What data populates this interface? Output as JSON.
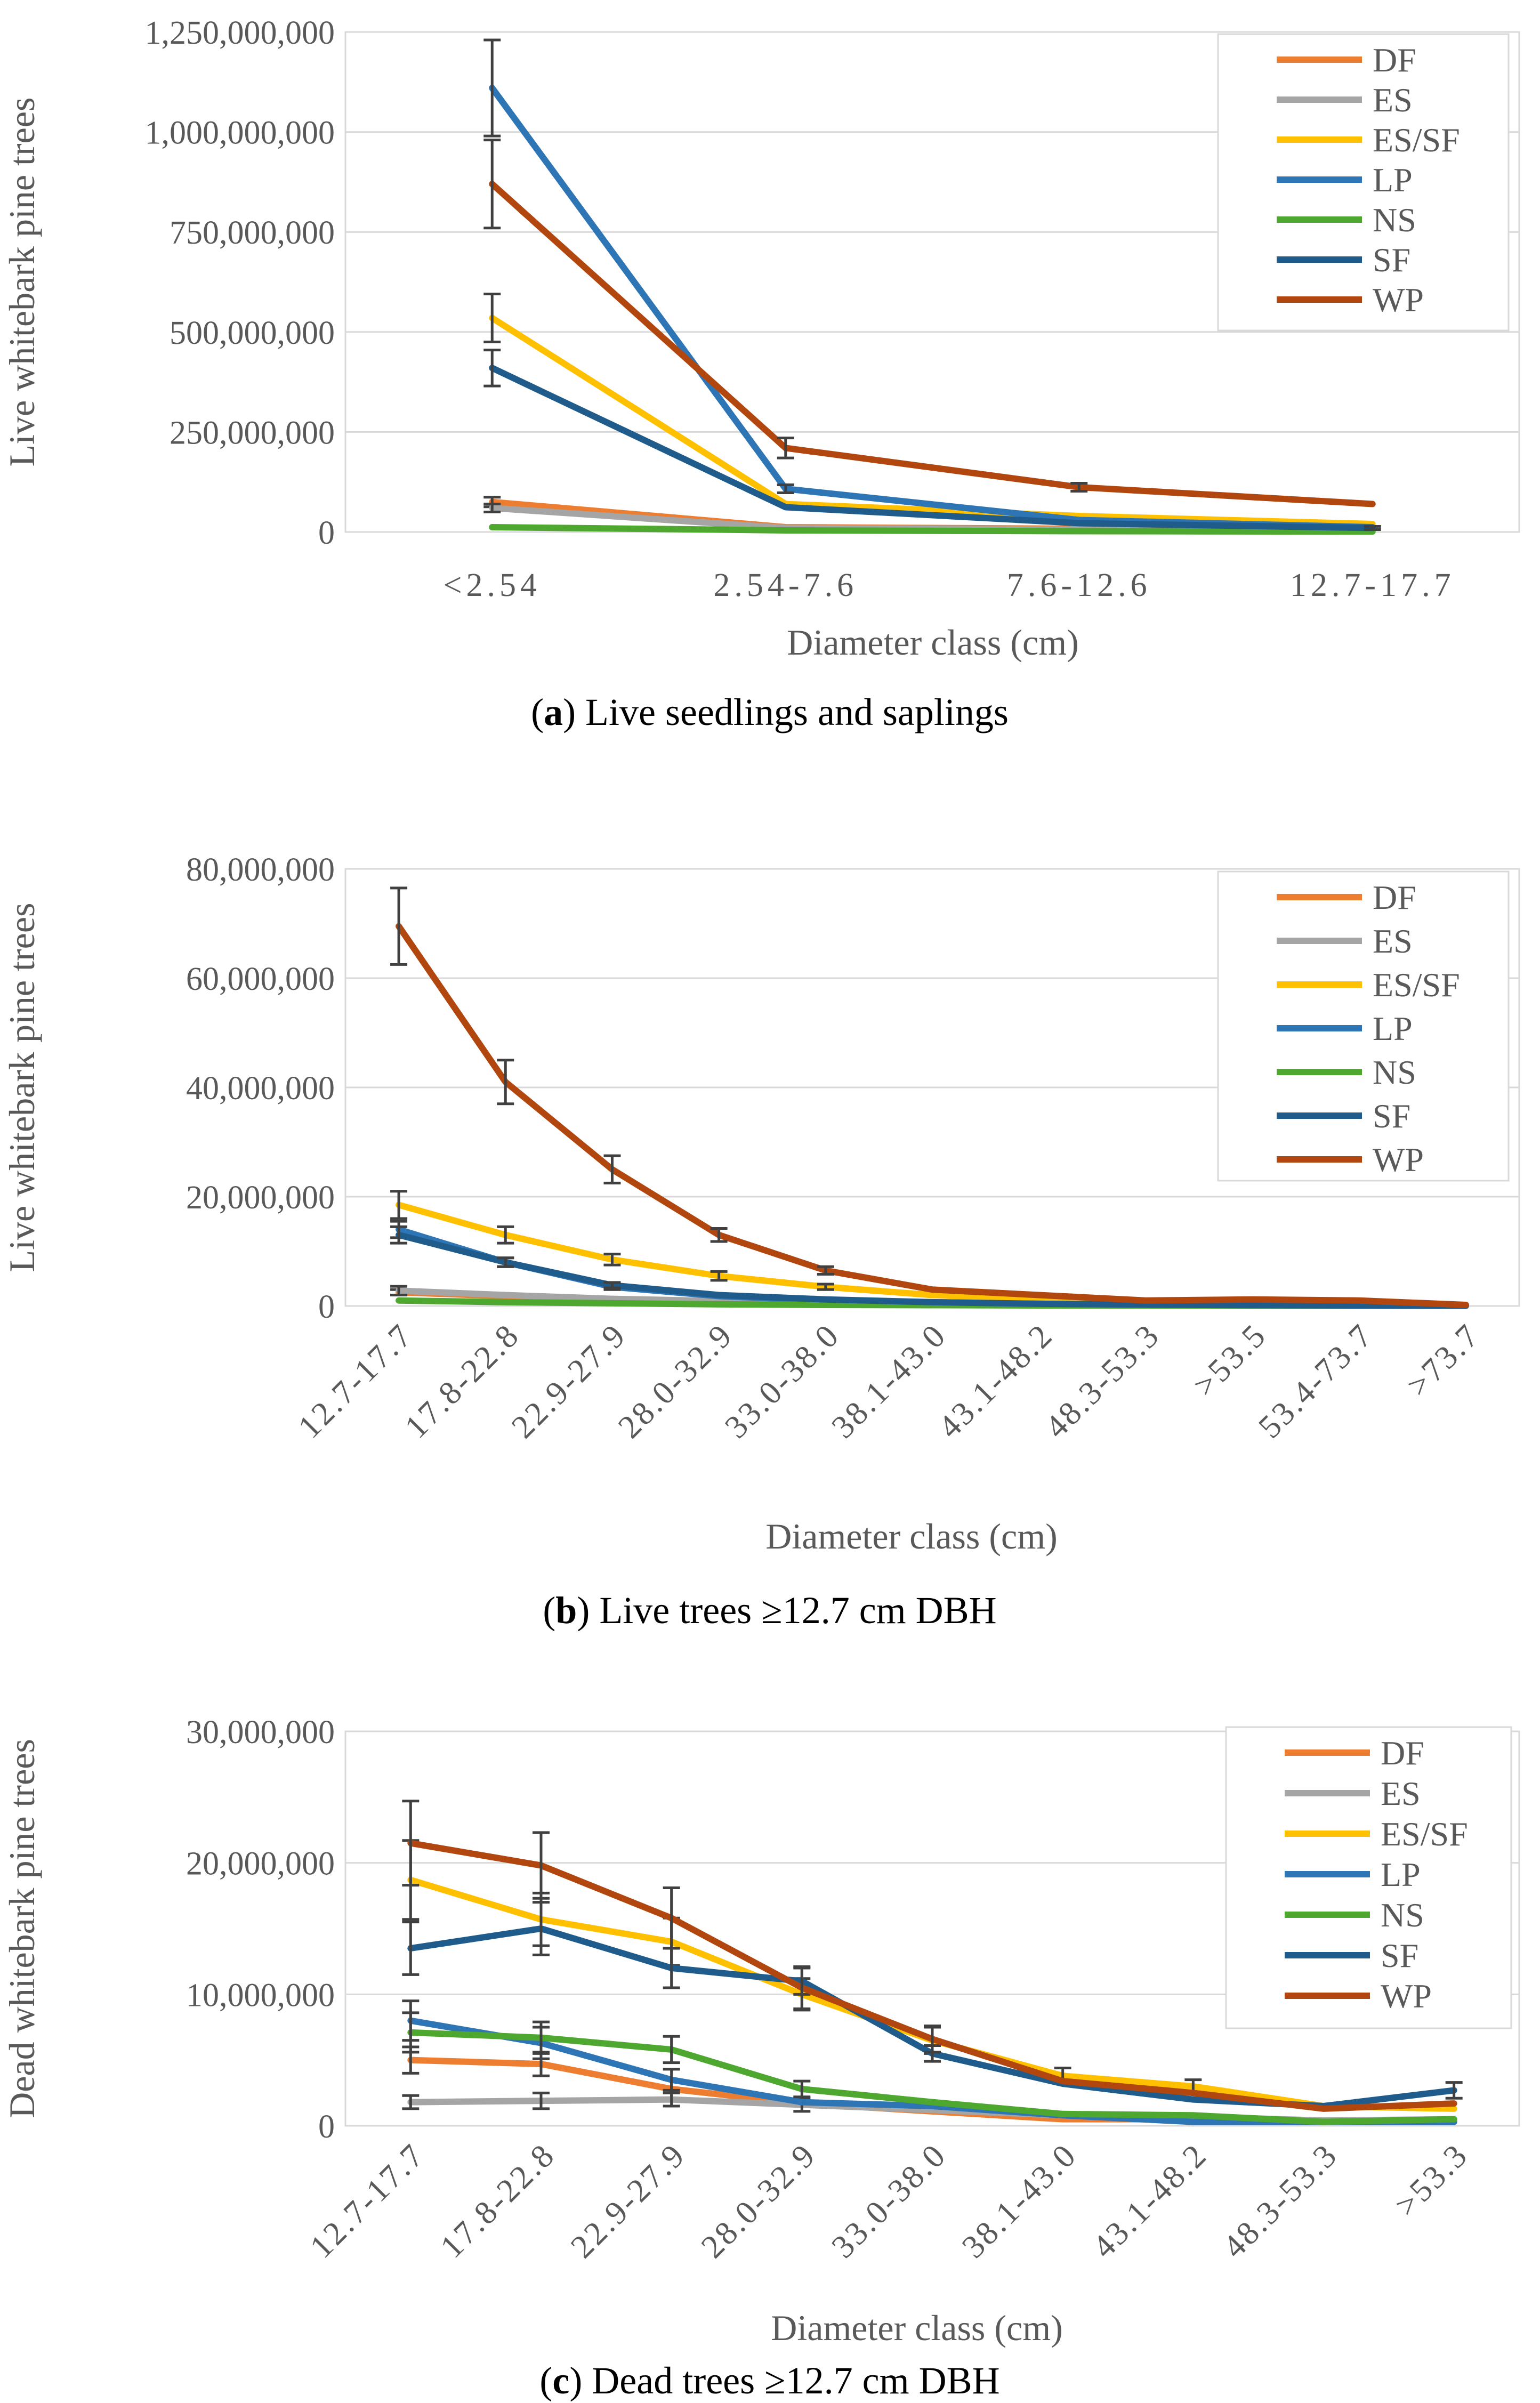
{
  "series_colors": {
    "DF": "#ED7D31",
    "ES": "#A5A5A5",
    "ES/SF": "#FFC000",
    "LP": "#2E75B6",
    "NS": "#4EA72E",
    "SF": "#1F5C8B",
    "WP": "#B1470F"
  },
  "chart_data": [
    {
      "type": "line",
      "panel": "a",
      "caption_letter": "a",
      "caption_text": ") Live seedlings and saplings",
      "ylabel": "Live whitebark pine trees",
      "xlabel": "Diameter class (cm)",
      "ylim": [
        0,
        1250000000
      ],
      "yticks": [
        0,
        250000000,
        500000000,
        750000000,
        1000000000,
        1250000000
      ],
      "ytick_labels": [
        "0",
        "250,000,000",
        "500,000,000",
        "750,000,000",
        "1,000,000,000",
        "1,250,000,000"
      ],
      "categories": [
        "<2.54",
        "2.54-7.6",
        "7.6-12.6",
        "12.7-17.7"
      ],
      "rotate_categories": false,
      "legend": [
        "DF",
        "ES",
        "ES/SF",
        "LP",
        "NS",
        "SF",
        "WP"
      ],
      "series": [
        {
          "name": "DF",
          "values": [
            75000000,
            12000000,
            8000000,
            5000000
          ],
          "errors": [
            12000000,
            0,
            0,
            0
          ]
        },
        {
          "name": "ES",
          "values": [
            60000000,
            10000000,
            6000000,
            4000000
          ],
          "errors": [
            10000000,
            0,
            0,
            0
          ]
        },
        {
          "name": "ES/SF",
          "values": [
            535000000,
            70000000,
            40000000,
            20000000
          ],
          "errors": [
            60000000,
            0,
            0,
            0
          ]
        },
        {
          "name": "LP",
          "values": [
            1110000000,
            108000000,
            30000000,
            12000000
          ],
          "errors": [
            120000000,
            10000000,
            0,
            0
          ]
        },
        {
          "name": "NS",
          "values": [
            12000000,
            4000000,
            2000000,
            1000000
          ],
          "errors": [
            0,
            0,
            0,
            0
          ]
        },
        {
          "name": "SF",
          "values": [
            410000000,
            62000000,
            22000000,
            10000000
          ],
          "errors": [
            45000000,
            0,
            0,
            4000000
          ]
        },
        {
          "name": "WP",
          "values": [
            870000000,
            210000000,
            112000000,
            70000000
          ],
          "errors": [
            110000000,
            25000000,
            10000000,
            0
          ]
        }
      ]
    },
    {
      "type": "line",
      "panel": "b",
      "caption_letter": "b",
      "caption_text": ") Live trees ≥12.7 cm DBH",
      "ylabel": "Live whitebark pine trees",
      "xlabel": "Diameter class (cm)",
      "ylim": [
        0,
        80000000
      ],
      "yticks": [
        0,
        20000000,
        40000000,
        60000000,
        80000000
      ],
      "ytick_labels": [
        "0",
        "20,000,000",
        "40,000,000",
        "60,000,000",
        "80,000,000"
      ],
      "categories": [
        "12.7-17.7",
        "17.8-22.8",
        "22.9-27.9",
        "28.0-32.9",
        "33.0-38.0",
        "38.1-43.0",
        "43.1-48.2",
        "48.3-53.3",
        ">53.5",
        "53.4-73.7",
        ">73.7"
      ],
      "rotate_categories": true,
      "legend": [
        "DF",
        "ES",
        "ES/SF",
        "LP",
        "NS",
        "SF",
        "WP"
      ],
      "series": [
        {
          "name": "DF",
          "values": [
            2500000,
            1800000,
            1200000,
            800000,
            500000,
            300000,
            200000,
            150000,
            100000,
            80000,
            50000
          ],
          "errors": [
            500000,
            0,
            0,
            0,
            0,
            0,
            0,
            0,
            0,
            0,
            0
          ]
        },
        {
          "name": "ES",
          "values": [
            2800000,
            2000000,
            1300000,
            900000,
            600000,
            400000,
            250000,
            150000,
            100000,
            80000,
            50000
          ],
          "errors": [
            800000,
            0,
            0,
            0,
            0,
            0,
            0,
            0,
            0,
            0,
            0
          ]
        },
        {
          "name": "ES/SF",
          "values": [
            18500000,
            13000000,
            8500000,
            5500000,
            3500000,
            2000000,
            1200000,
            800000,
            600000,
            400000,
            200000
          ],
          "errors": [
            2500000,
            1500000,
            1000000,
            800000,
            500000,
            0,
            0,
            0,
            0,
            0,
            0
          ]
        },
        {
          "name": "LP",
          "values": [
            14000000,
            8000000,
            3500000,
            1800000,
            1000000,
            600000,
            400000,
            200000,
            150000,
            100000,
            50000
          ],
          "errors": [
            1500000,
            800000,
            500000,
            0,
            0,
            0,
            0,
            0,
            0,
            0,
            0
          ]
        },
        {
          "name": "NS",
          "values": [
            1000000,
            700000,
            500000,
            300000,
            200000,
            150000,
            100000,
            80000,
            50000,
            40000,
            20000
          ],
          "errors": [
            0,
            0,
            0,
            0,
            0,
            0,
            0,
            0,
            0,
            0,
            0
          ]
        },
        {
          "name": "SF",
          "values": [
            13000000,
            8000000,
            3800000,
            2000000,
            1200000,
            700000,
            400000,
            250000,
            150000,
            100000,
            50000
          ],
          "errors": [
            1500000,
            800000,
            500000,
            0,
            0,
            0,
            0,
            0,
            0,
            0,
            0
          ]
        },
        {
          "name": "WP",
          "values": [
            69500000,
            41000000,
            25000000,
            13000000,
            6500000,
            3000000,
            2000000,
            1000000,
            1200000,
            1000000,
            200000
          ],
          "errors": [
            7000000,
            4000000,
            2500000,
            1200000,
            700000,
            0,
            0,
            0,
            0,
            0,
            0
          ]
        }
      ]
    },
    {
      "type": "line",
      "panel": "c",
      "caption_letter": "c",
      "caption_text": ") Dead trees ≥12.7 cm DBH",
      "ylabel": "Dead whitebark pine trees",
      "xlabel": "Diameter class (cm)",
      "ylim": [
        0,
        30000000
      ],
      "yticks": [
        0,
        10000000,
        20000000,
        30000000
      ],
      "ytick_labels": [
        "0",
        "10,000,000",
        "20,000,000",
        "30,000,000"
      ],
      "categories": [
        "12.7-17.7",
        "17.8-22.8",
        "22.9-27.9",
        "28.0-32.9",
        "33.0-38.0",
        "38.1-43.0",
        "43.1-48.2",
        "48.3-53.3",
        ">53.3"
      ],
      "rotate_categories": true,
      "legend": [
        "DF",
        "ES",
        "ES/SF",
        "LP",
        "NS",
        "SF",
        "WP"
      ],
      "series": [
        {
          "name": "DF",
          "values": [
            5000000,
            4700000,
            2800000,
            1700000,
            1100000,
            500000,
            500000,
            300000,
            400000
          ],
          "errors": [
            1000000,
            900000,
            700000,
            0,
            0,
            0,
            0,
            0,
            0
          ]
        },
        {
          "name": "ES",
          "values": [
            1800000,
            1900000,
            2000000,
            1600000,
            1200000,
            800000,
            700000,
            400000,
            500000
          ],
          "errors": [
            500000,
            600000,
            500000,
            500000,
            0,
            0,
            0,
            0,
            0
          ]
        },
        {
          "name": "ES/SF",
          "values": [
            18700000,
            15700000,
            14000000,
            10000000,
            6500000,
            3800000,
            3000000,
            1500000,
            1300000
          ],
          "errors": [
            3000000,
            2000000,
            1800000,
            1200000,
            1000000,
            600000,
            500000,
            0,
            0
          ]
        },
        {
          "name": "LP",
          "values": [
            8000000,
            6300000,
            3500000,
            1800000,
            1500000,
            800000,
            300000,
            300000,
            300000
          ],
          "errors": [
            1500000,
            1200000,
            800000,
            0,
            0,
            0,
            0,
            0,
            0
          ]
        },
        {
          "name": "NS",
          "values": [
            7100000,
            6700000,
            5800000,
            2800000,
            1800000,
            900000,
            800000,
            300000,
            500000
          ],
          "errors": [
            1500000,
            1200000,
            1000000,
            600000,
            0,
            0,
            0,
            0,
            0
          ]
        },
        {
          "name": "SF",
          "values": [
            13500000,
            15000000,
            12000000,
            11000000,
            5500000,
            3200000,
            2000000,
            1500000,
            2700000
          ],
          "errors": [
            2000000,
            2000000,
            1500000,
            1000000,
            600000,
            0,
            0,
            0,
            600000
          ]
        },
        {
          "name": "WP",
          "values": [
            21500000,
            19800000,
            15800000,
            10500000,
            6600000,
            3400000,
            2500000,
            1300000,
            1700000
          ],
          "errors": [
            3200000,
            2500000,
            2300000,
            1600000,
            1000000,
            0,
            0,
            0,
            0
          ]
        }
      ]
    }
  ]
}
